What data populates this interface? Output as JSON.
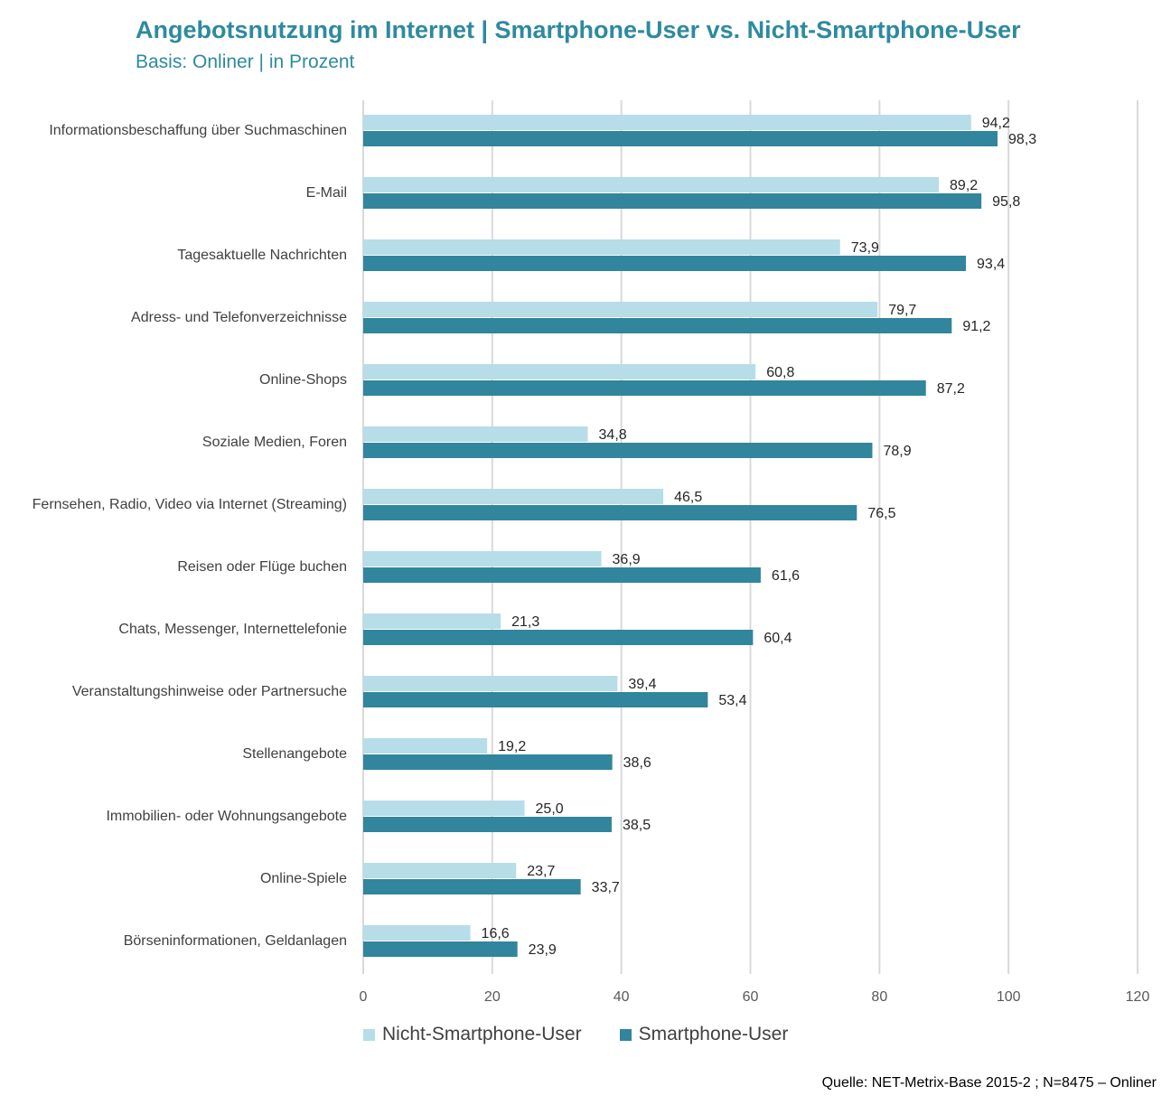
{
  "title": "Angebotsnutzung im Internet | Smartphone-User vs. Nicht-Smartphone-User",
  "subtitle": "Basis: Onliner | in Prozent",
  "source": "Quelle: NET-Metrix-Base 2015-2 ; N=8475 – Onliner",
  "colors": {
    "nicht_smartphone": "#b6dde8",
    "smartphone": "#31859c",
    "title": "#2e8a9e",
    "grid": "#d9d9d9"
  },
  "chart_data": {
    "type": "bar",
    "orientation": "horizontal",
    "categories": [
      "Informationsbeschaffung über Suchmaschinen",
      "E-Mail",
      "Tagesaktuelle Nachrichten",
      "Adress- und Telefonverzeichnisse",
      "Online-Shops",
      "Soziale Medien, Foren",
      "Fernsehen, Radio, Video via Internet (Streaming)",
      "Reisen oder Flüge buchen",
      "Chats, Messenger, Internettelefonie",
      "Veranstaltungshinweise oder Partnersuche",
      "Stellenangebote",
      "Immobilien- oder Wohnungsangebote",
      "Online-Spiele",
      "Börseninformationen, Geldanlagen"
    ],
    "series": [
      {
        "name": "Nicht-Smartphone-User",
        "values": [
          94.2,
          89.2,
          73.9,
          79.7,
          60.8,
          34.8,
          46.5,
          36.9,
          21.3,
          39.4,
          19.2,
          25.0,
          23.7,
          16.6
        ],
        "labels": [
          "94,2",
          "89,2",
          "73,9",
          "79,7",
          "60,8",
          "34,8",
          "46,5",
          "36,9",
          "21,3",
          "39,4",
          "19,2",
          "25,0",
          "23,7",
          "16,6"
        ]
      },
      {
        "name": "Smartphone-User",
        "values": [
          98.3,
          95.8,
          93.4,
          91.2,
          87.2,
          78.9,
          76.5,
          61.6,
          60.4,
          53.4,
          38.6,
          38.5,
          33.7,
          23.9
        ],
        "labels": [
          "98,3",
          "95,8",
          "93,4",
          "91,2",
          "87,2",
          "78,9",
          "76,5",
          "61,6",
          "60,4",
          "53,4",
          "38,6",
          "38,5",
          "33,7",
          "23,9"
        ]
      }
    ],
    "xlim": [
      0,
      120
    ],
    "xticks": [
      0,
      20,
      40,
      60,
      80,
      100,
      120
    ],
    "grid": true,
    "legend_position": "bottom"
  }
}
